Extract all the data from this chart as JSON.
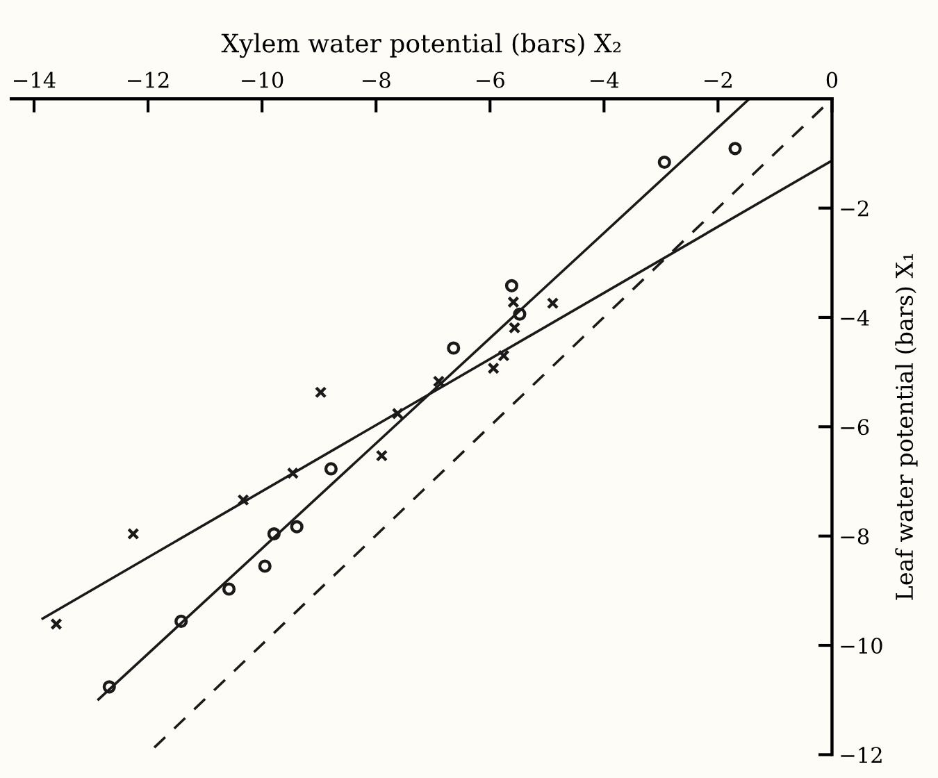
{
  "chart_data": {
    "type": "scatter",
    "xlabel": "Xylem water potential (bars) X₂",
    "ylabel": "Leaf water potential (bars) X₁",
    "xlim": [
      -14.4,
      0
    ],
    "xticks": [
      {
        "value": -14,
        "label": "−14"
      },
      {
        "value": -12,
        "label": "−12"
      },
      {
        "value": -10,
        "label": "−10"
      },
      {
        "value": -8,
        "label": "−8"
      },
      {
        "value": -6,
        "label": "−6"
      },
      {
        "value": -4,
        "label": "−4"
      },
      {
        "value": -2,
        "label": "−2"
      },
      0
    ],
    "ylim": [
      -12,
      0
    ],
    "yticks": [
      {
        "value": -2,
        "label": "−2"
      },
      {
        "value": -4,
        "label": "−4"
      },
      {
        "value": -6,
        "label": "−6"
      },
      {
        "value": -8,
        "label": "−8"
      },
      {
        "value": -10,
        "label": "−10"
      },
      {
        "value": -12,
        "label": "−12"
      }
    ],
    "grid": false,
    "legend": false,
    "series": [
      {
        "marker": "circle",
        "color": "#1a1a1a",
        "x": [
          -2.94,
          -1.7,
          -5.62,
          -5.48,
          -6.64,
          -8.79,
          -9.79,
          -9.39,
          -9.95,
          -10.58,
          -11.42,
          -12.68
        ],
        "values": [
          -1.16,
          -0.91,
          -3.42,
          -3.94,
          -4.56,
          -6.77,
          -7.96,
          -7.83,
          -8.55,
          -8.97,
          -9.56,
          -10.76
        ]
      },
      {
        "marker": "cross",
        "color": "#1a1a1a",
        "x": [
          -8.97,
          -7.62,
          -6.9,
          -7.9,
          -9.46,
          -10.33,
          -12.26,
          -13.61,
          -5.59,
          -4.9,
          -5.57,
          -5.76,
          -5.94
        ],
        "values": [
          -5.37,
          -5.76,
          -5.17,
          -6.53,
          -6.85,
          -7.34,
          -7.96,
          -9.61,
          -3.72,
          -3.74,
          -4.19,
          -4.7,
          -4.93
        ]
      },
      {
        "type": "line",
        "line_style": "solid",
        "color": "#1a1a1a",
        "x": [
          -12.87,
          -1.45
        ],
        "values": [
          -10.99,
          0
        ]
      },
      {
        "type": "line",
        "line_style": "solid",
        "color": "#1a1a1a",
        "x": [
          -13.85,
          0
        ],
        "values": [
          -9.51,
          -1.13
        ]
      },
      {
        "type": "line",
        "line_style": "dashed",
        "color": "#1a1a1a",
        "x": [
          -11.89,
          0
        ],
        "values": [
          -11.87,
          0
        ]
      }
    ]
  }
}
